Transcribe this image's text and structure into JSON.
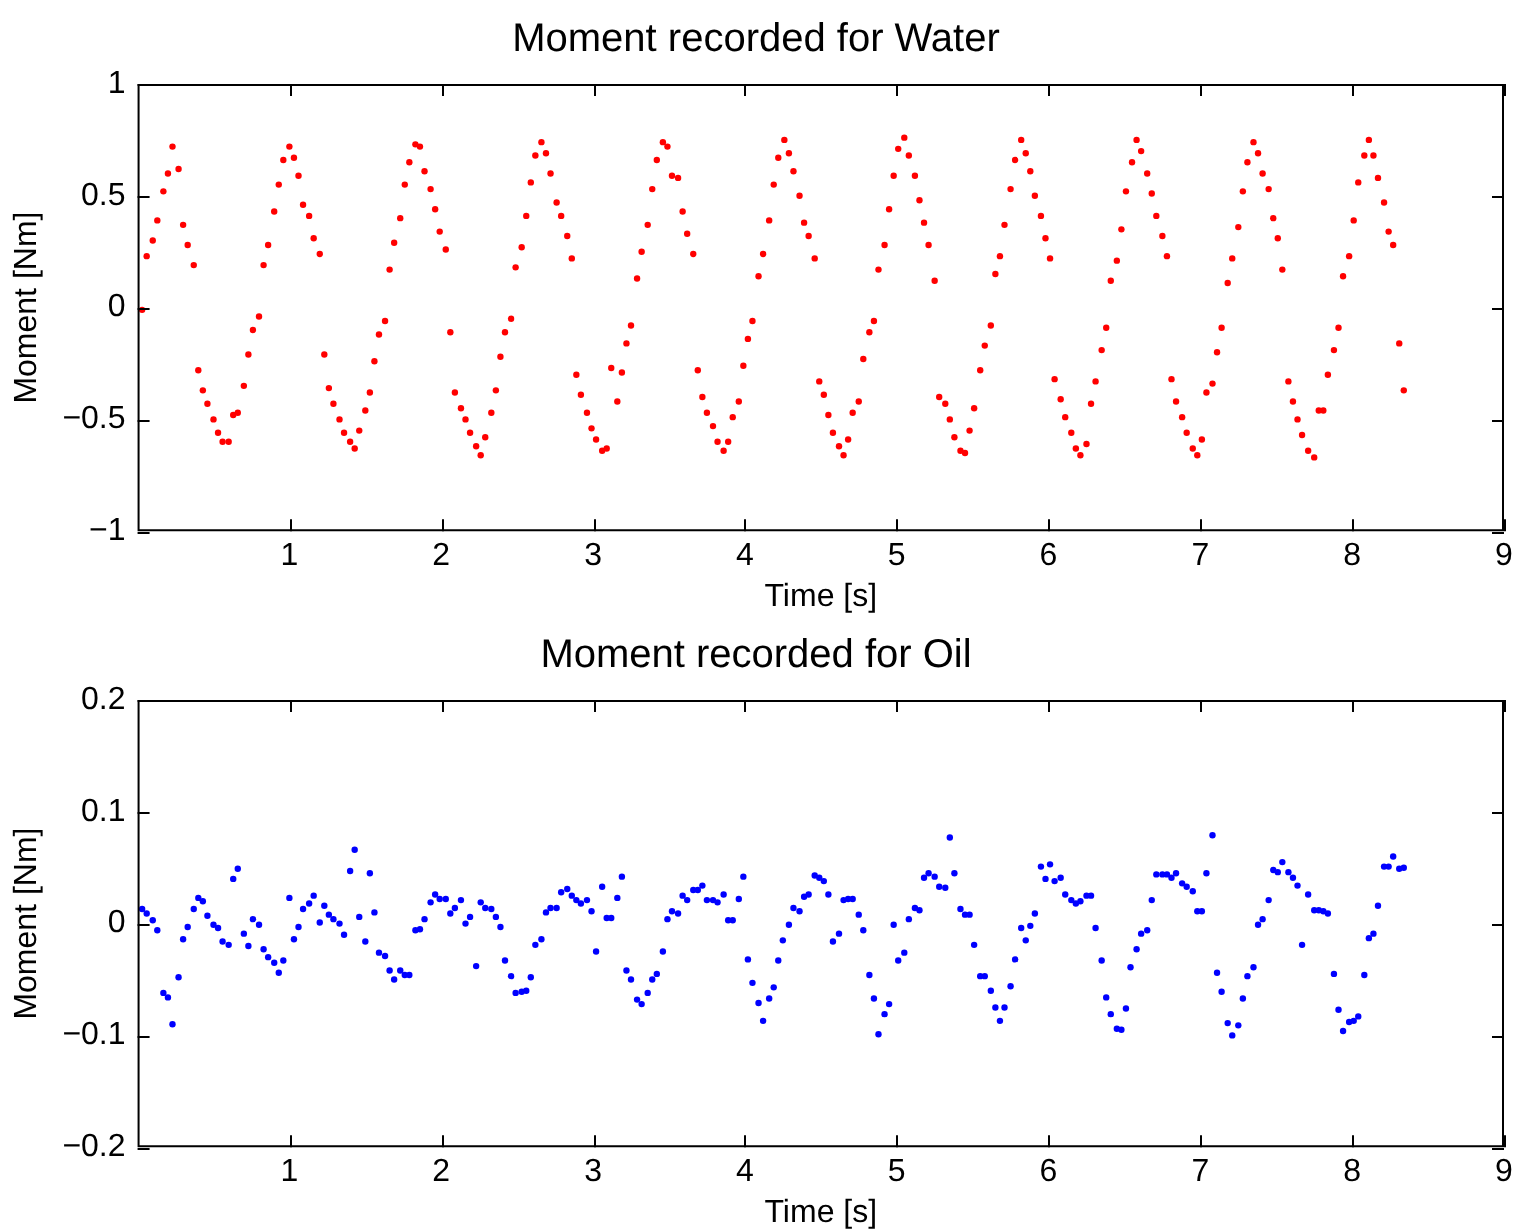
{
  "chart_data": [
    {
      "type": "scatter",
      "title": "Moment recorded for Water",
      "xlabel": "Time [s]",
      "ylabel": "Moment [Nm]",
      "xlim": [
        0,
        9
      ],
      "xticks": [
        1,
        2,
        3,
        4,
        5,
        6,
        7,
        8,
        9
      ],
      "ylim": [
        -1,
        1
      ],
      "yticks": [
        -1,
        -0.5,
        0,
        0.5,
        1
      ],
      "grid": false,
      "legend": false,
      "marker": "circle",
      "x": [
        0.03,
        0.06,
        0.1,
        0.13,
        0.17,
        0.2,
        0.23,
        0.27,
        0.3,
        0.33,
        0.37,
        0.4,
        0.43,
        0.46,
        0.5,
        0.53,
        0.56,
        0.6,
        0.63,
        0.66,
        0.7,
        0.73,
        0.76,
        0.8,
        0.83,
        0.86,
        0.9,
        0.93,
        0.96,
        1.0,
        1.03,
        1.06,
        1.09,
        1.13,
        1.16,
        1.2,
        1.23,
        1.26,
        1.29,
        1.33,
        1.36,
        1.4,
        1.43,
        1.46,
        1.5,
        1.53,
        1.56,
        1.59,
        1.63,
        1.66,
        1.69,
        1.73,
        1.76,
        1.79,
        1.83,
        1.86,
        1.89,
        1.93,
        1.96,
        1.99,
        2.03,
        2.06,
        2.09,
        2.13,
        2.16,
        2.19,
        2.23,
        2.26,
        2.29,
        2.33,
        2.36,
        2.39,
        2.42,
        2.46,
        2.49,
        2.53,
        2.56,
        2.59,
        2.62,
        2.66,
        2.69,
        2.72,
        2.76,
        2.79,
        2.83,
        2.86,
        2.89,
        2.92,
        2.96,
        2.99,
        3.02,
        3.06,
        3.09,
        3.12,
        3.16,
        3.19,
        3.22,
        3.25,
        3.29,
        3.32,
        3.36,
        3.39,
        3.42,
        3.46,
        3.49,
        3.52,
        3.56,
        3.59,
        3.62,
        3.66,
        3.69,
        3.72,
        3.75,
        3.79,
        3.82,
        3.86,
        3.89,
        3.92,
        3.96,
        3.99,
        4.02,
        4.05,
        4.09,
        4.12,
        4.16,
        4.19,
        4.22,
        4.26,
        4.29,
        4.32,
        4.36,
        4.39,
        4.42,
        4.46,
        4.49,
        4.52,
        4.55,
        4.58,
        4.62,
        4.65,
        4.68,
        4.71,
        4.75,
        4.78,
        4.82,
        4.85,
        4.88,
        4.92,
        4.95,
        4.98,
        5.01,
        5.05,
        5.08,
        5.12,
        5.15,
        5.18,
        5.21,
        5.25,
        5.28,
        5.32,
        5.35,
        5.38,
        5.42,
        5.45,
        5.48,
        5.51,
        5.55,
        5.58,
        5.62,
        5.65,
        5.68,
        5.71,
        5.75,
        5.78,
        5.82,
        5.85,
        5.88,
        5.91,
        5.95,
        5.98,
        6.01,
        6.04,
        6.08,
        6.11,
        6.15,
        6.18,
        6.21,
        6.25,
        6.28,
        6.31,
        6.35,
        6.38,
        6.41,
        6.45,
        6.48,
        6.51,
        6.55,
        6.58,
        6.61,
        6.65,
        6.68,
        6.71,
        6.75,
        6.78,
        6.81,
        6.84,
        6.88,
        6.91,
        6.95,
        6.98,
        7.01,
        7.04,
        7.08,
        7.11,
        7.14,
        7.18,
        7.21,
        7.25,
        7.28,
        7.31,
        7.35,
        7.38,
        7.41,
        7.45,
        7.48,
        7.51,
        7.54,
        7.58,
        7.61,
        7.64,
        7.67,
        7.71,
        7.75,
        7.78,
        7.81,
        7.84,
        7.88,
        7.91,
        7.94,
        7.98,
        8.01,
        8.04,
        8.08,
        8.11,
        8.14,
        8.17,
        8.21,
        8.24,
        8.27,
        8.31,
        8.34
      ],
      "series": [
        {
          "color": "#ff0000",
          "values": [
            -0.01,
            0.23,
            0.3,
            0.39,
            0.52,
            0.6,
            0.72,
            0.62,
            0.37,
            0.28,
            0.19,
            -0.28,
            -0.37,
            -0.43,
            -0.5,
            -0.56,
            -0.6,
            -0.6,
            -0.48,
            -0.47,
            -0.35,
            -0.21,
            -0.1,
            -0.04,
            0.19,
            0.28,
            0.43,
            0.55,
            0.66,
            0.72,
            0.67,
            0.59,
            0.46,
            0.41,
            0.31,
            0.24,
            -0.21,
            -0.36,
            -0.43,
            -0.5,
            -0.56,
            -0.6,
            -0.63,
            -0.55,
            -0.46,
            -0.38,
            -0.24,
            -0.12,
            -0.06,
            0.17,
            0.29,
            0.4,
            0.55,
            0.65,
            0.73,
            0.72,
            0.61,
            0.53,
            0.44,
            0.34,
            0.26,
            -0.11,
            -0.38,
            -0.45,
            -0.5,
            -0.56,
            -0.62,
            -0.66,
            -0.58,
            -0.47,
            -0.37,
            -0.22,
            -0.11,
            -0.05,
            0.18,
            0.27,
            0.41,
            0.56,
            0.68,
            0.74,
            0.69,
            0.6,
            0.47,
            0.41,
            0.32,
            0.22,
            -0.3,
            -0.39,
            -0.47,
            -0.54,
            -0.59,
            -0.64,
            -0.63,
            -0.27,
            -0.42,
            -0.29,
            -0.16,
            -0.08,
            0.13,
            0.25,
            0.37,
            0.53,
            0.66,
            0.74,
            0.72,
            0.59,
            0.58,
            0.43,
            0.33,
            0.24,
            -0.28,
            -0.4,
            -0.47,
            -0.53,
            -0.6,
            -0.64,
            -0.6,
            -0.49,
            -0.42,
            -0.26,
            -0.14,
            -0.06,
            0.14,
            0.24,
            0.39,
            0.55,
            0.67,
            0.75,
            0.69,
            0.61,
            0.5,
            0.38,
            0.32,
            0.22,
            -0.33,
            -0.39,
            -0.48,
            -0.56,
            -0.62,
            -0.66,
            -0.59,
            -0.47,
            -0.42,
            -0.23,
            -0.11,
            -0.06,
            0.17,
            0.28,
            0.44,
            0.59,
            0.71,
            0.76,
            0.68,
            0.59,
            0.48,
            0.38,
            0.28,
            0.12,
            -0.4,
            -0.43,
            -0.5,
            -0.58,
            -0.64,
            -0.65,
            -0.55,
            -0.45,
            -0.28,
            -0.17,
            -0.08,
            0.15,
            0.23,
            0.37,
            0.53,
            0.66,
            0.75,
            0.69,
            0.61,
            0.5,
            0.41,
            0.31,
            0.22,
            -0.32,
            -0.41,
            -0.49,
            -0.56,
            -0.63,
            -0.66,
            -0.61,
            -0.43,
            -0.33,
            -0.19,
            -0.09,
            0.12,
            0.21,
            0.35,
            0.52,
            0.65,
            0.75,
            0.7,
            0.6,
            0.51,
            0.41,
            0.32,
            0.23,
            -0.32,
            -0.42,
            -0.49,
            -0.56,
            -0.63,
            -0.66,
            -0.59,
            -0.38,
            -0.34,
            -0.2,
            -0.09,
            0.11,
            0.22,
            0.36,
            0.52,
            0.65,
            0.74,
            0.69,
            0.6,
            0.53,
            0.4,
            0.31,
            0.17,
            -0.33,
            -0.42,
            -0.5,
            -0.57,
            -0.64,
            -0.67,
            -0.46,
            -0.46,
            -0.3,
            -0.19,
            -0.09,
            0.14,
            0.23,
            0.39,
            0.56,
            0.68,
            0.75,
            0.68,
            0.58,
            0.47,
            0.34,
            0.28,
            -0.16,
            -0.37
          ]
        }
      ]
    },
    {
      "type": "scatter",
      "title": "Moment recorded for Oil",
      "xlabel": "Time [s]",
      "ylabel": "Moment [Nm]",
      "xlim": [
        0,
        9
      ],
      "xticks": [
        1,
        2,
        3,
        4,
        5,
        6,
        7,
        8,
        9
      ],
      "ylim": [
        -0.2,
        0.2
      ],
      "yticks": [
        -0.2,
        -0.1,
        0,
        0.1,
        0.2
      ],
      "grid": false,
      "legend": false,
      "marker": "circle",
      "x": [
        0.03,
        0.06,
        0.1,
        0.13,
        0.17,
        0.2,
        0.23,
        0.27,
        0.3,
        0.33,
        0.37,
        0.4,
        0.43,
        0.46,
        0.5,
        0.53,
        0.56,
        0.6,
        0.63,
        0.66,
        0.7,
        0.73,
        0.76,
        0.8,
        0.83,
        0.86,
        0.9,
        0.93,
        0.96,
        1.0,
        1.03,
        1.06,
        1.09,
        1.13,
        1.16,
        1.2,
        1.23,
        1.26,
        1.29,
        1.33,
        1.36,
        1.4,
        1.43,
        1.46,
        1.5,
        1.53,
        1.56,
        1.59,
        1.63,
        1.66,
        1.69,
        1.73,
        1.76,
        1.79,
        1.83,
        1.86,
        1.89,
        1.93,
        1.96,
        1.99,
        2.03,
        2.06,
        2.09,
        2.13,
        2.16,
        2.19,
        2.23,
        2.26,
        2.29,
        2.33,
        2.36,
        2.39,
        2.42,
        2.46,
        2.49,
        2.53,
        2.56,
        2.59,
        2.62,
        2.66,
        2.69,
        2.72,
        2.76,
        2.79,
        2.83,
        2.86,
        2.89,
        2.92,
        2.96,
        2.99,
        3.02,
        3.06,
        3.09,
        3.12,
        3.16,
        3.19,
        3.22,
        3.25,
        3.29,
        3.32,
        3.36,
        3.39,
        3.42,
        3.46,
        3.49,
        3.52,
        3.56,
        3.59,
        3.62,
        3.66,
        3.69,
        3.72,
        3.75,
        3.79,
        3.82,
        3.86,
        3.89,
        3.92,
        3.96,
        3.99,
        4.02,
        4.05,
        4.09,
        4.12,
        4.16,
        4.19,
        4.22,
        4.25,
        4.29,
        4.32,
        4.36,
        4.39,
        4.42,
        4.46,
        4.49,
        4.52,
        4.55,
        4.58,
        4.62,
        4.65,
        4.68,
        4.71,
        4.75,
        4.78,
        4.82,
        4.85,
        4.88,
        4.92,
        4.95,
        4.98,
        5.01,
        5.05,
        5.08,
        5.12,
        5.15,
        5.18,
        5.21,
        5.25,
        5.28,
        5.32,
        5.35,
        5.38,
        5.42,
        5.45,
        5.48,
        5.51,
        5.55,
        5.58,
        5.62,
        5.65,
        5.68,
        5.71,
        5.75,
        5.78,
        5.82,
        5.85,
        5.88,
        5.91,
        5.95,
        5.98,
        6.01,
        6.04,
        6.08,
        6.11,
        6.15,
        6.18,
        6.21,
        6.25,
        6.28,
        6.31,
        6.35,
        6.38,
        6.41,
        6.45,
        6.48,
        6.51,
        6.54,
        6.58,
        6.61,
        6.65,
        6.68,
        6.71,
        6.75,
        6.78,
        6.81,
        6.84,
        6.88,
        6.91,
        6.95,
        6.98,
        7.01,
        7.04,
        7.08,
        7.11,
        7.14,
        7.18,
        7.21,
        7.25,
        7.28,
        7.31,
        7.35,
        7.38,
        7.41,
        7.45,
        7.48,
        7.51,
        7.54,
        7.58,
        7.61,
        7.64,
        7.67,
        7.71,
        7.75,
        7.78,
        7.81,
        7.84,
        7.88,
        7.91,
        7.94,
        7.98,
        8.01,
        8.04,
        8.08,
        8.11,
        8.14,
        8.17,
        8.21,
        8.24,
        8.27,
        8.31,
        8.34
      ],
      "series": [
        {
          "color": "#0000ff",
          "values": [
            0.013,
            0.009,
            0.003,
            -0.006,
            -0.062,
            -0.066,
            -0.09,
            -0.048,
            -0.014,
            -0.003,
            0.013,
            0.023,
            0.02,
            0.007,
            -0.001,
            -0.004,
            -0.016,
            -0.019,
            0.04,
            0.049,
            -0.009,
            -0.02,
            0.004,
            -0.001,
            -0.023,
            -0.03,
            -0.035,
            -0.044,
            -0.033,
            0.023,
            -0.014,
            -0.003,
            0.013,
            0.018,
            0.025,
            0.001,
            0.016,
            0.008,
            0.004,
            0,
            -0.01,
            0.047,
            0.066,
            0.006,
            -0.016,
            0.045,
            0.01,
            -0.026,
            -0.029,
            -0.042,
            -0.05,
            -0.042,
            -0.046,
            -0.046,
            -0.006,
            -0.005,
            0.004,
            0.019,
            0.026,
            0.022,
            0.022,
            0.009,
            0.014,
            0.021,
            0,
            0.006,
            -0.038,
            0.019,
            0.014,
            0.013,
            0.006,
            -0.003,
            -0.033,
            -0.047,
            -0.062,
            -0.061,
            -0.06,
            -0.048,
            -0.019,
            -0.014,
            0.01,
            0.014,
            0.014,
            0.028,
            0.031,
            0.025,
            0.021,
            0.018,
            0.021,
            0.011,
            -0.025,
            0.033,
            0.005,
            0.005,
            0.023,
            0.042,
            -0.042,
            -0.05,
            -0.068,
            -0.072,
            -0.062,
            -0.05,
            -0.045,
            -0.025,
            0.004,
            0.011,
            0.009,
            0.025,
            0.021,
            0.03,
            0.03,
            0.034,
            0.021,
            0.021,
            0.019,
            0.026,
            0.003,
            0.003,
            0.022,
            0.042,
            -0.032,
            -0.053,
            -0.071,
            -0.087,
            -0.067,
            -0.057,
            -0.033,
            -0.015,
            -0.001,
            0.014,
            0.011,
            0.024,
            0.026,
            0.043,
            0.041,
            0.038,
            0.026,
            -0.016,
            -0.009,
            0.021,
            0.022,
            0.022,
            0.008,
            -0.006,
            -0.046,
            -0.067,
            -0.099,
            -0.081,
            -0.072,
            -0.001,
            -0.033,
            -0.026,
            0.004,
            0.014,
            0.012,
            0.041,
            0.045,
            0.042,
            0.033,
            0.032,
            0.077,
            0.045,
            0.013,
            0.008,
            0.008,
            -0.019,
            -0.047,
            -0.047,
            -0.06,
            -0.075,
            -0.087,
            -0.075,
            -0.056,
            -0.032,
            -0.004,
            -0.015,
            -0.002,
            0.009,
            0.051,
            0.04,
            0.053,
            0.038,
            0.041,
            0.026,
            0.021,
            0.018,
            0.02,
            0.025,
            0.025,
            -0.004,
            -0.033,
            -0.066,
            -0.081,
            -0.094,
            -0.095,
            -0.076,
            -0.039,
            -0.023,
            -0.009,
            -0.006,
            0.021,
            0.044,
            0.044,
            0.044,
            0.041,
            0.045,
            0.036,
            0.033,
            0.029,
            0.011,
            0.011,
            0.045,
            0.079,
            -0.044,
            -0.061,
            -0.089,
            -0.1,
            -0.091,
            -0.067,
            -0.047,
            -0.039,
            -0.001,
            0.004,
            0.021,
            0.048,
            0.046,
            0.055,
            0.046,
            0.041,
            0.034,
            -0.019,
            0.026,
            0.012,
            0.012,
            0.011,
            0.009,
            -0.045,
            -0.077,
            -0.096,
            -0.088,
            -0.087,
            -0.083,
            -0.046,
            -0.013,
            -0.009,
            0.016,
            0.051,
            0.051,
            0.06,
            0.049,
            0.05
          ]
        }
      ]
    }
  ]
}
